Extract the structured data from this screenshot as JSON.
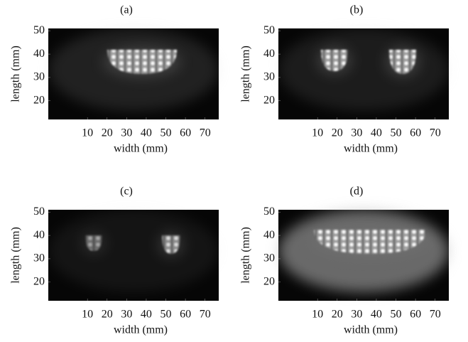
{
  "chart_data": [
    {
      "type": "image",
      "title": "(a)",
      "xlabel": "width (mm)",
      "ylabel": "length (mm)",
      "xlim": [
        -10,
        77
      ],
      "ylim": [
        12,
        51
      ],
      "xticks": [
        10,
        20,
        30,
        40,
        50,
        60,
        70
      ],
      "yticks": [
        20,
        30,
        40,
        50
      ]
    },
    {
      "type": "image",
      "title": "(b)",
      "xlabel": "width (mm)",
      "ylabel": "length (mm)",
      "xlim": [
        -10,
        77
      ],
      "ylim": [
        12,
        51
      ],
      "xticks": [
        10,
        20,
        30,
        40,
        50,
        60,
        70
      ],
      "yticks": [
        20,
        30,
        40,
        50
      ]
    },
    {
      "type": "image",
      "title": "(c)",
      "xlabel": "width (mm)",
      "ylabel": "length (mm)",
      "xlim": [
        -10,
        77
      ],
      "ylim": [
        12,
        51
      ],
      "xticks": [
        10,
        20,
        30,
        40,
        50,
        60,
        70
      ],
      "yticks": [
        20,
        30,
        40,
        50
      ]
    },
    {
      "type": "image",
      "title": "(d)",
      "xlabel": "width (mm)",
      "ylabel": "length (mm)",
      "xlim": [
        -10,
        77
      ],
      "ylim": [
        12,
        51
      ],
      "xticks": [
        10,
        20,
        30,
        40,
        50,
        60,
        70
      ],
      "yticks": [
        20,
        30,
        40,
        50
      ]
    }
  ]
}
